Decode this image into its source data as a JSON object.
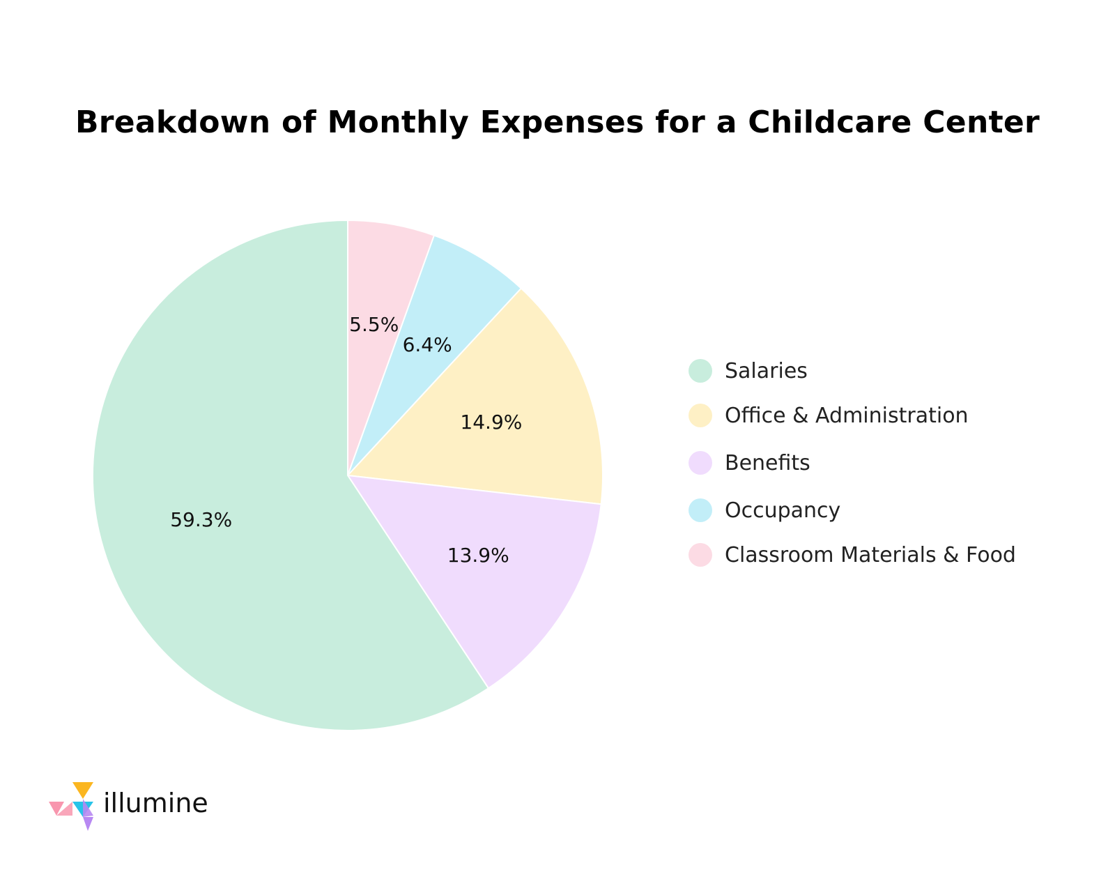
{
  "chart_data": {
    "type": "pie",
    "title": "Breakdown of Monthly Expenses for a Childcare Center",
    "start": "top, clockwise",
    "slices": [
      {
        "name": "Classroom Materials & Food",
        "value": 5.5,
        "label": "5.5%",
        "color": "#fcdbe4"
      },
      {
        "name": "Occupancy",
        "value": 6.4,
        "label": "6.4%",
        "color": "#c2eef8"
      },
      {
        "name": "Office & Administration",
        "value": 14.9,
        "label": "14.9%",
        "color": "#fef0c5"
      },
      {
        "name": "Benefits",
        "value": 13.9,
        "label": "13.9%",
        "color": "#f0dcfd"
      },
      {
        "name": "Salaries",
        "value": 59.3,
        "label": "59.3%",
        "color": "#c8eddd"
      }
    ],
    "legend": [
      {
        "label": "Salaries",
        "color": "#c8eddd"
      },
      {
        "label": "Office & Administration",
        "color": "#fef0c5"
      },
      {
        "label": "Benefits",
        "color": "#f0dcfd"
      },
      {
        "label": "Occupancy",
        "color": "#c2eef8"
      },
      {
        "label": "Classroom Materials & Food",
        "color": "#fcdbe4"
      }
    ],
    "legend_position": "right"
  },
  "brand": {
    "name": "illumine",
    "logo_colors": [
      "#fbb620",
      "#f896ae",
      "#27c3e8",
      "#b788f2"
    ]
  }
}
